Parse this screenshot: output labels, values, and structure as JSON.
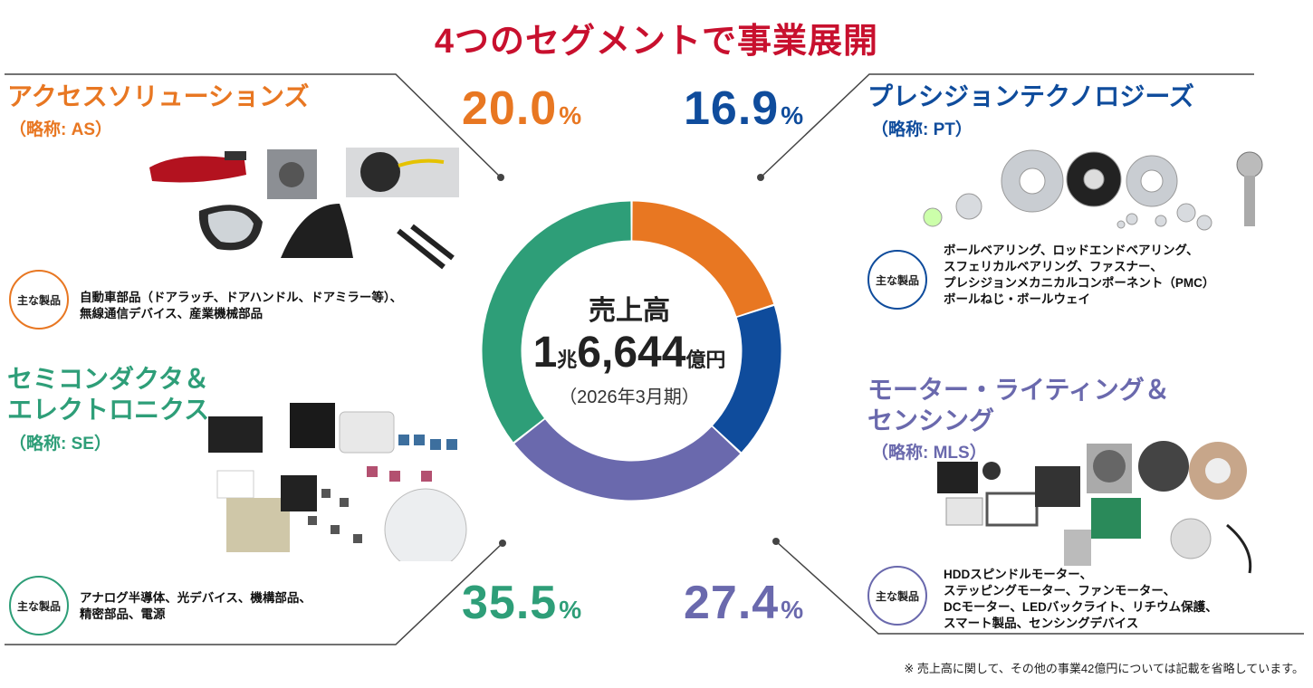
{
  "title": "4つのセグメントで事業展開",
  "colors": {
    "title": "#c8102e",
    "as": "#e87722",
    "pt": "#0f4c9c",
    "se": "#2e9e78",
    "mls": "#6a69ad"
  },
  "center": {
    "label": "売上高",
    "value_prefix": "1",
    "value_unit1": "兆",
    "value_main": "6,644",
    "value_unit2": "億円",
    "period": "（2026年3月期）"
  },
  "segments": {
    "as": {
      "name_lines": [
        "アクセスソリューションズ"
      ],
      "abbr": "（略称: AS）",
      "percent": "20.0",
      "percent_sign": "%",
      "badge": "主な製品",
      "products": [
        "自動車部品（ドアラッチ、ドアハンドル、ドアミラー等）、",
        "無線通信デバイス、産業機械部品"
      ]
    },
    "pt": {
      "name_lines": [
        "プレシジョンテクノロジーズ"
      ],
      "abbr": "（略称: PT）",
      "percent": "16.9",
      "percent_sign": "%",
      "badge": "主な製品",
      "products": [
        "ボールベアリング、ロッドエンドベアリング、",
        "スフェリカルベアリング、ファスナー、",
        "プレシジョンメカニカルコンポーネント（PMC）",
        "ボールねじ・ボールウェイ"
      ]
    },
    "se": {
      "name_lines": [
        "セミコンダクタ＆",
        "エレクトロニクス"
      ],
      "abbr": "（略称: SE）",
      "percent": "35.5",
      "percent_sign": "%",
      "badge": "主な製品",
      "products": [
        "アナログ半導体、光デバイス、機構部品、",
        "精密部品、電源"
      ]
    },
    "mls": {
      "name_lines": [
        "モーター・ライティング＆",
        "センシング"
      ],
      "abbr": "（略称: MLS）",
      "percent": "27.4",
      "percent_sign": "%",
      "badge": "主な製品",
      "products": [
        "HDDスピンドルモーター、",
        "ステッピングモーター、ファンモーター、",
        "DCモーター、LEDバックライト、リチウム保護、",
        "スマート製品、センシングデバイス"
      ]
    }
  },
  "chart_data": {
    "type": "pie",
    "categories": [
      "アクセスソリューションズ",
      "プレシジョンテクノロジーズ",
      "モーター・ライティング＆センシング",
      "セミコンダクタ＆エレクトロニクス"
    ],
    "values": [
      20.0,
      16.9,
      27.4,
      35.5
    ],
    "colors": [
      "#e87722",
      "#0f4c9c",
      "#6a69ad",
      "#2e9e78"
    ],
    "title": "売上高"
  },
  "footnote": "※ 売上高に関して、その他の事業42億円については記載を省略しています。"
}
